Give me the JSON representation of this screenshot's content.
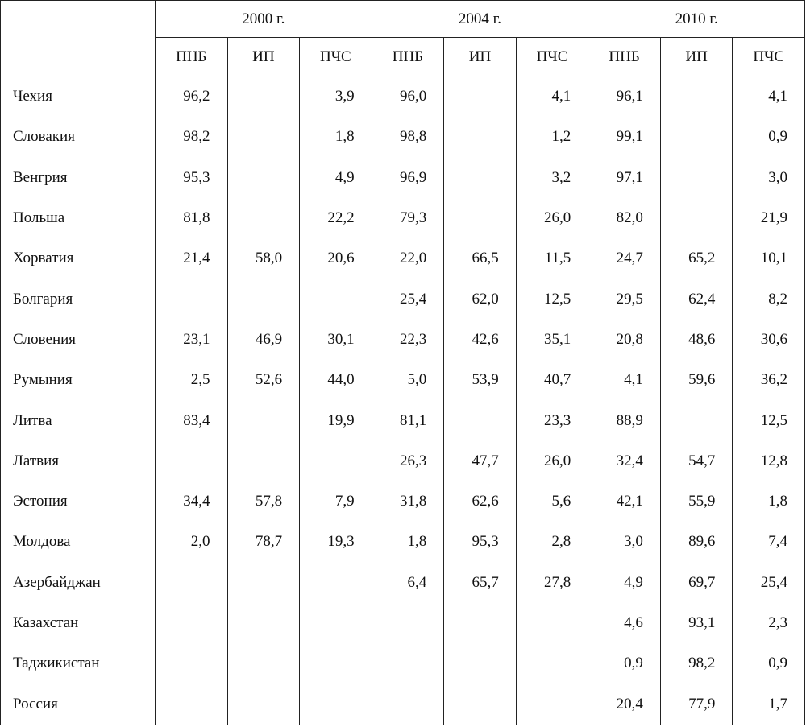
{
  "table": {
    "groups": [
      {
        "year": "2000 г.",
        "columns": [
          "ПНБ",
          "ИП",
          "ПЧС"
        ]
      },
      {
        "year": "2004 г.",
        "columns": [
          "ПНБ",
          "ИП",
          "ПЧС"
        ]
      },
      {
        "year": "2010 г.",
        "columns": [
          "ПНБ",
          "ИП",
          "ПЧС"
        ]
      }
    ],
    "rows": [
      {
        "country": "Чехия",
        "values": [
          "96,2",
          null,
          "3,9",
          "96,0",
          null,
          "4,1",
          "96,1",
          null,
          "4,1"
        ]
      },
      {
        "country": "Словакия",
        "values": [
          "98,2",
          null,
          "1,8",
          "98,8",
          null,
          "1,2",
          "99,1",
          null,
          "0,9"
        ]
      },
      {
        "country": "Венгрия",
        "values": [
          "95,3",
          null,
          "4,9",
          "96,9",
          null,
          "3,2",
          "97,1",
          null,
          "3,0"
        ]
      },
      {
        "country": "Польша",
        "values": [
          "81,8",
          null,
          "22,2",
          "79,3",
          null,
          "26,0",
          "82,0",
          null,
          "21,9"
        ]
      },
      {
        "country": "Хорватия",
        "values": [
          "21,4",
          "58,0",
          "20,6",
          "22,0",
          "66,5",
          "11,5",
          "24,7",
          "65,2",
          "10,1"
        ]
      },
      {
        "country": "Болгария",
        "values": [
          null,
          null,
          null,
          "25,4",
          "62,0",
          "12,5",
          "29,5",
          "62,4",
          "8,2"
        ]
      },
      {
        "country": "Словения",
        "values": [
          "23,1",
          "46,9",
          "30,1",
          "22,3",
          "42,6",
          "35,1",
          "20,8",
          "48,6",
          "30,6"
        ]
      },
      {
        "country": "Румыния",
        "values": [
          "2,5",
          "52,6",
          "44,0",
          "5,0",
          "53,9",
          "40,7",
          "4,1",
          "59,6",
          "36,2"
        ]
      },
      {
        "country": "Литва",
        "values": [
          "83,4",
          null,
          "19,9",
          "81,1",
          null,
          "23,3",
          "88,9",
          null,
          "12,5"
        ]
      },
      {
        "country": "Латвия",
        "values": [
          null,
          null,
          null,
          "26,3",
          "47,7",
          "26,0",
          "32,4",
          "54,7",
          "12,8"
        ]
      },
      {
        "country": "Эстония",
        "values": [
          "34,4",
          "57,8",
          "7,9",
          "31,8",
          "62,6",
          "5,6",
          "42,1",
          "55,9",
          "1,8"
        ]
      },
      {
        "country": "Молдова",
        "values": [
          "2,0",
          "78,7",
          "19,3",
          "1,8",
          "95,3",
          "2,8",
          "3,0",
          "89,6",
          "7,4"
        ]
      },
      {
        "country": "Азербайджан",
        "values": [
          null,
          null,
          null,
          "6,4",
          "65,7",
          "27,8",
          "4,9",
          "69,7",
          "25,4"
        ]
      },
      {
        "country": "Казахстан",
        "values": [
          null,
          null,
          null,
          null,
          null,
          null,
          "4,6",
          "93,1",
          "2,3"
        ]
      },
      {
        "country": "Таджикистан",
        "values": [
          null,
          null,
          null,
          null,
          null,
          null,
          "0,9",
          "98,2",
          "0,9"
        ]
      },
      {
        "country": "Россия",
        "values": [
          null,
          null,
          null,
          null,
          null,
          null,
          "20,4",
          "77,9",
          "1,7"
        ]
      }
    ]
  }
}
